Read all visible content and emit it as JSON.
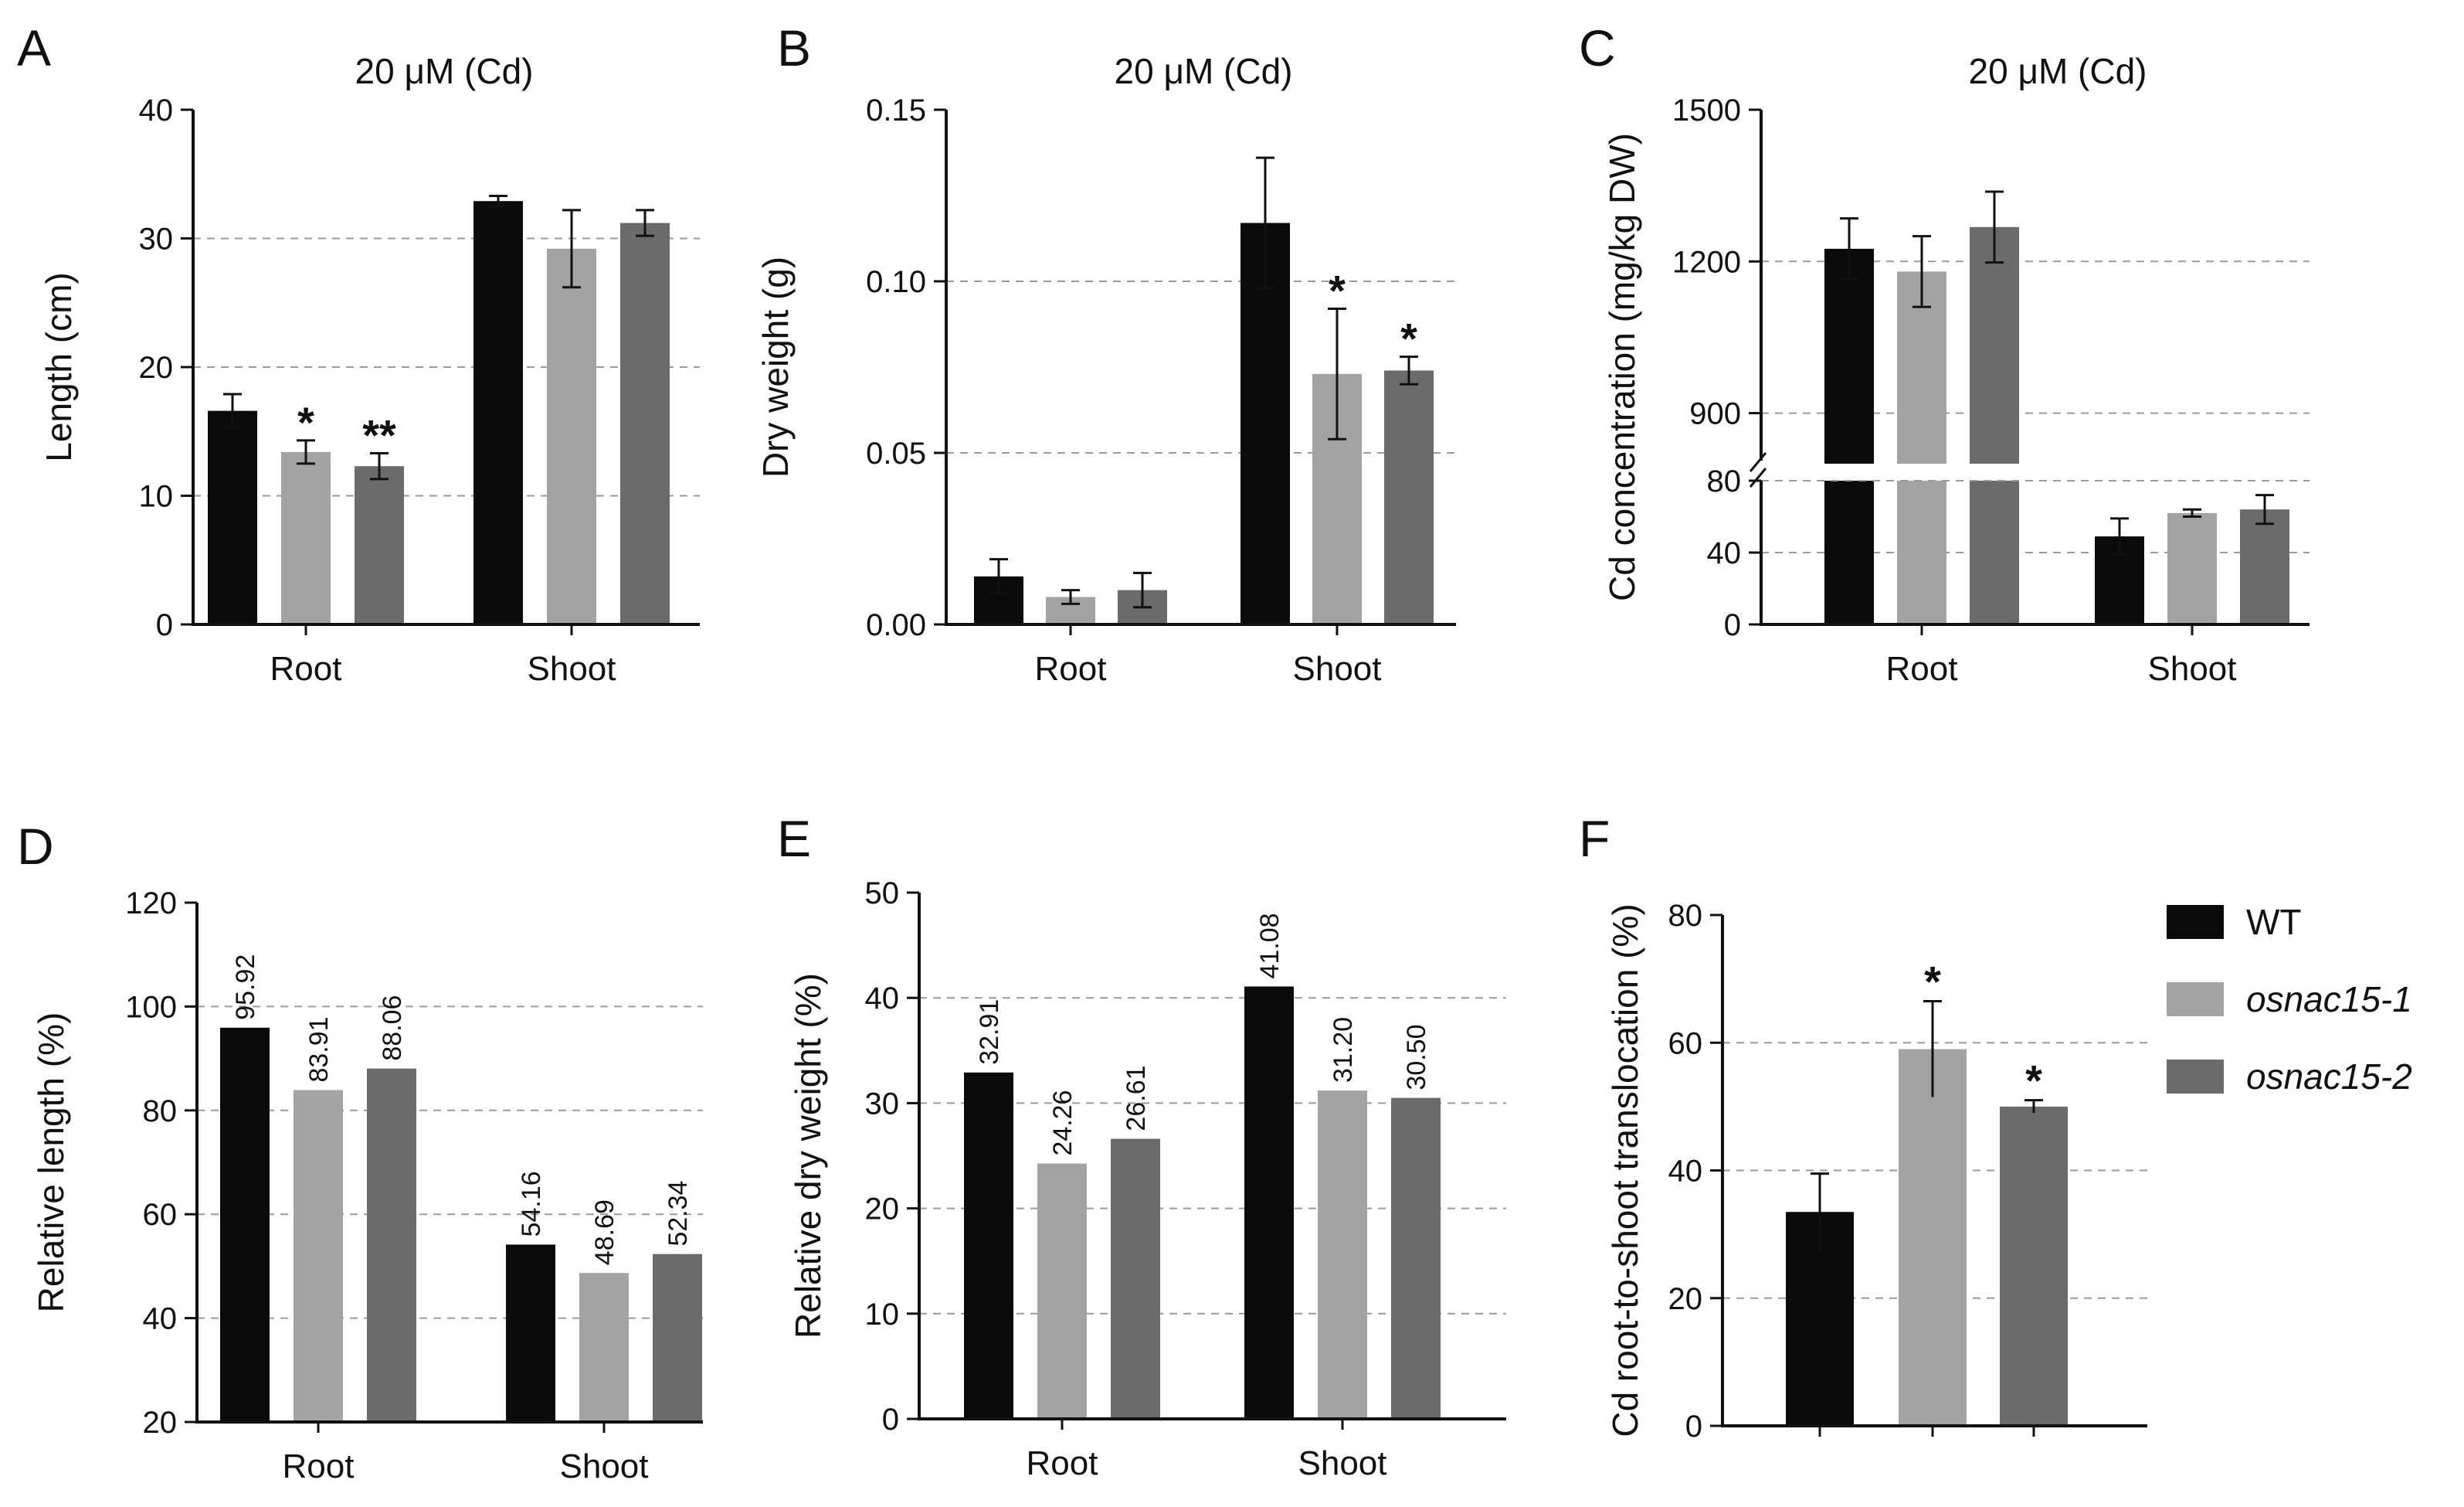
{
  "figure": {
    "colors": {
      "WT": "#0a0a0a",
      "osnac15-1": "#a3a3a3",
      "osnac15-2": "#6b6b6b",
      "grid": "#9a9a9a",
      "axis": "#111111"
    },
    "legend": [
      "WT",
      "osnac15-1",
      "osnac15-2"
    ]
  },
  "chart_data": [
    {
      "id": "A",
      "letter": "A",
      "type": "bar",
      "title": "20 μM (Cd)",
      "ylabel": "Length (cm)",
      "xlabel": "",
      "categories": [
        "Root",
        "Shoot"
      ],
      "ylim": [
        0,
        40
      ],
      "yticks": [
        0,
        10,
        20,
        30,
        40
      ],
      "tick_labels": [
        "0",
        "10",
        "20",
        "30",
        "40"
      ],
      "grid": [
        10,
        20,
        30
      ],
      "series": [
        {
          "name": "WT",
          "values": [
            16.6,
            32.9
          ],
          "errors": [
            1.3,
            0.4
          ],
          "sig": [
            "",
            ""
          ]
        },
        {
          "name": "osnac15-1",
          "values": [
            13.4,
            29.2
          ],
          "errors": [
            0.9,
            3.0
          ],
          "sig": [
            "*",
            ""
          ]
        },
        {
          "name": "osnac15-2",
          "values": [
            12.3,
            31.2
          ],
          "errors": [
            1.0,
            1.0
          ],
          "sig": [
            "**",
            ""
          ]
        }
      ]
    },
    {
      "id": "B",
      "letter": "B",
      "type": "bar",
      "title": "20 μM (Cd)",
      "ylabel": "Dry weight (g)",
      "xlabel": "",
      "categories": [
        "Root",
        "Shoot"
      ],
      "ylim": [
        0,
        0.15
      ],
      "yticks": [
        0,
        0.05,
        0.1,
        0.15
      ],
      "tick_labels": [
        "0.00",
        "0.05",
        "0.10",
        "0.15"
      ],
      "grid": [
        0.05,
        0.1
      ],
      "series": [
        {
          "name": "WT",
          "values": [
            0.014,
            0.117
          ],
          "errors": [
            0.005,
            0.019
          ],
          "sig": [
            "",
            ""
          ]
        },
        {
          "name": "osnac15-1",
          "values": [
            0.008,
            0.073
          ],
          "errors": [
            0.002,
            0.019
          ],
          "sig": [
            "",
            "*"
          ]
        },
        {
          "name": "osnac15-2",
          "values": [
            0.01,
            0.074
          ],
          "errors": [
            0.005,
            0.004
          ],
          "sig": [
            "",
            "*"
          ]
        }
      ]
    },
    {
      "id": "C",
      "letter": "C",
      "type": "bar",
      "title": "20 μM (Cd)",
      "ylabel": "Cd concentration (mg/kg DW)",
      "xlabel": "",
      "categories": [
        "Root",
        "Shoot"
      ],
      "broken_axis": {
        "lower": [
          0,
          80
        ],
        "upper": [
          800,
          1500
        ]
      },
      "ylim": [
        0,
        1500
      ],
      "yticks": [
        0,
        40,
        80,
        900,
        1200,
        1500
      ],
      "tick_labels": [
        "0",
        "40",
        "80",
        "900",
        "1200",
        "1500"
      ],
      "grid": [
        40,
        80,
        900,
        1200
      ],
      "series": [
        {
          "name": "WT",
          "values": [
            1225,
            49
          ],
          "errors": [
            60,
            10
          ],
          "sig": [
            "",
            ""
          ]
        },
        {
          "name": "osnac15-1",
          "values": [
            1180,
            62
          ],
          "errors": [
            70,
            2
          ],
          "sig": [
            "",
            ""
          ]
        },
        {
          "name": "osnac15-2",
          "values": [
            1268,
            64
          ],
          "errors": [
            70,
            8
          ],
          "sig": [
            "",
            ""
          ]
        }
      ]
    },
    {
      "id": "D",
      "letter": "D",
      "type": "bar",
      "title": "",
      "ylabel": "Relative length (%)",
      "xlabel": "",
      "categories": [
        "Root",
        "Shoot"
      ],
      "ylim": [
        20,
        120
      ],
      "yticks": [
        20,
        40,
        60,
        80,
        100,
        120
      ],
      "tick_labels": [
        "20",
        "40",
        "60",
        "80",
        "100",
        "120"
      ],
      "grid": [
        40,
        60,
        80,
        100
      ],
      "series": [
        {
          "name": "WT",
          "values": [
            95.92,
            54.16
          ],
          "value_labels": [
            "95.92",
            "54.16"
          ]
        },
        {
          "name": "osnac15-1",
          "values": [
            83.91,
            48.69
          ],
          "value_labels": [
            "83.91",
            "48.69"
          ]
        },
        {
          "name": "osnac15-2",
          "values": [
            88.06,
            52.34
          ],
          "value_labels": [
            "88.06",
            "52.34"
          ]
        }
      ]
    },
    {
      "id": "E",
      "letter": "E",
      "type": "bar",
      "title": "",
      "ylabel": "Relative dry weight (%)",
      "xlabel": "",
      "categories": [
        "Root",
        "Shoot"
      ],
      "ylim": [
        0,
        50
      ],
      "yticks": [
        0,
        10,
        20,
        30,
        40,
        50
      ],
      "tick_labels": [
        "0",
        "10",
        "20",
        "30",
        "40",
        "50"
      ],
      "grid": [
        10,
        20,
        30,
        40
      ],
      "series": [
        {
          "name": "WT",
          "values": [
            32.91,
            41.08
          ],
          "value_labels": [
            "32.91",
            "41.08"
          ]
        },
        {
          "name": "osnac15-1",
          "values": [
            24.26,
            31.2
          ],
          "value_labels": [
            "24.26",
            "31.20"
          ]
        },
        {
          "name": "osnac15-2",
          "values": [
            26.61,
            30.5
          ],
          "value_labels": [
            "26.61",
            "30.50"
          ]
        }
      ]
    },
    {
      "id": "F",
      "letter": "F",
      "type": "bar",
      "title": "",
      "ylabel": "Cd root-to-shoot translocation (%)",
      "xlabel": "",
      "categories": [
        "WT",
        "osnac15-1",
        "osnac15-2"
      ],
      "ylim": [
        0,
        80
      ],
      "yticks": [
        0,
        20,
        40,
        60,
        80
      ],
      "tick_labels": [
        "0",
        "20",
        "40",
        "60",
        "80"
      ],
      "grid": [
        20,
        40,
        60
      ],
      "bars": [
        {
          "name": "WT",
          "value": 33.5,
          "error": 6,
          "sig": ""
        },
        {
          "name": "osnac15-1",
          "value": 59,
          "error": 7.5,
          "sig": "*"
        },
        {
          "name": "osnac15-2",
          "value": 50,
          "error": 1,
          "sig": "*"
        }
      ]
    }
  ]
}
